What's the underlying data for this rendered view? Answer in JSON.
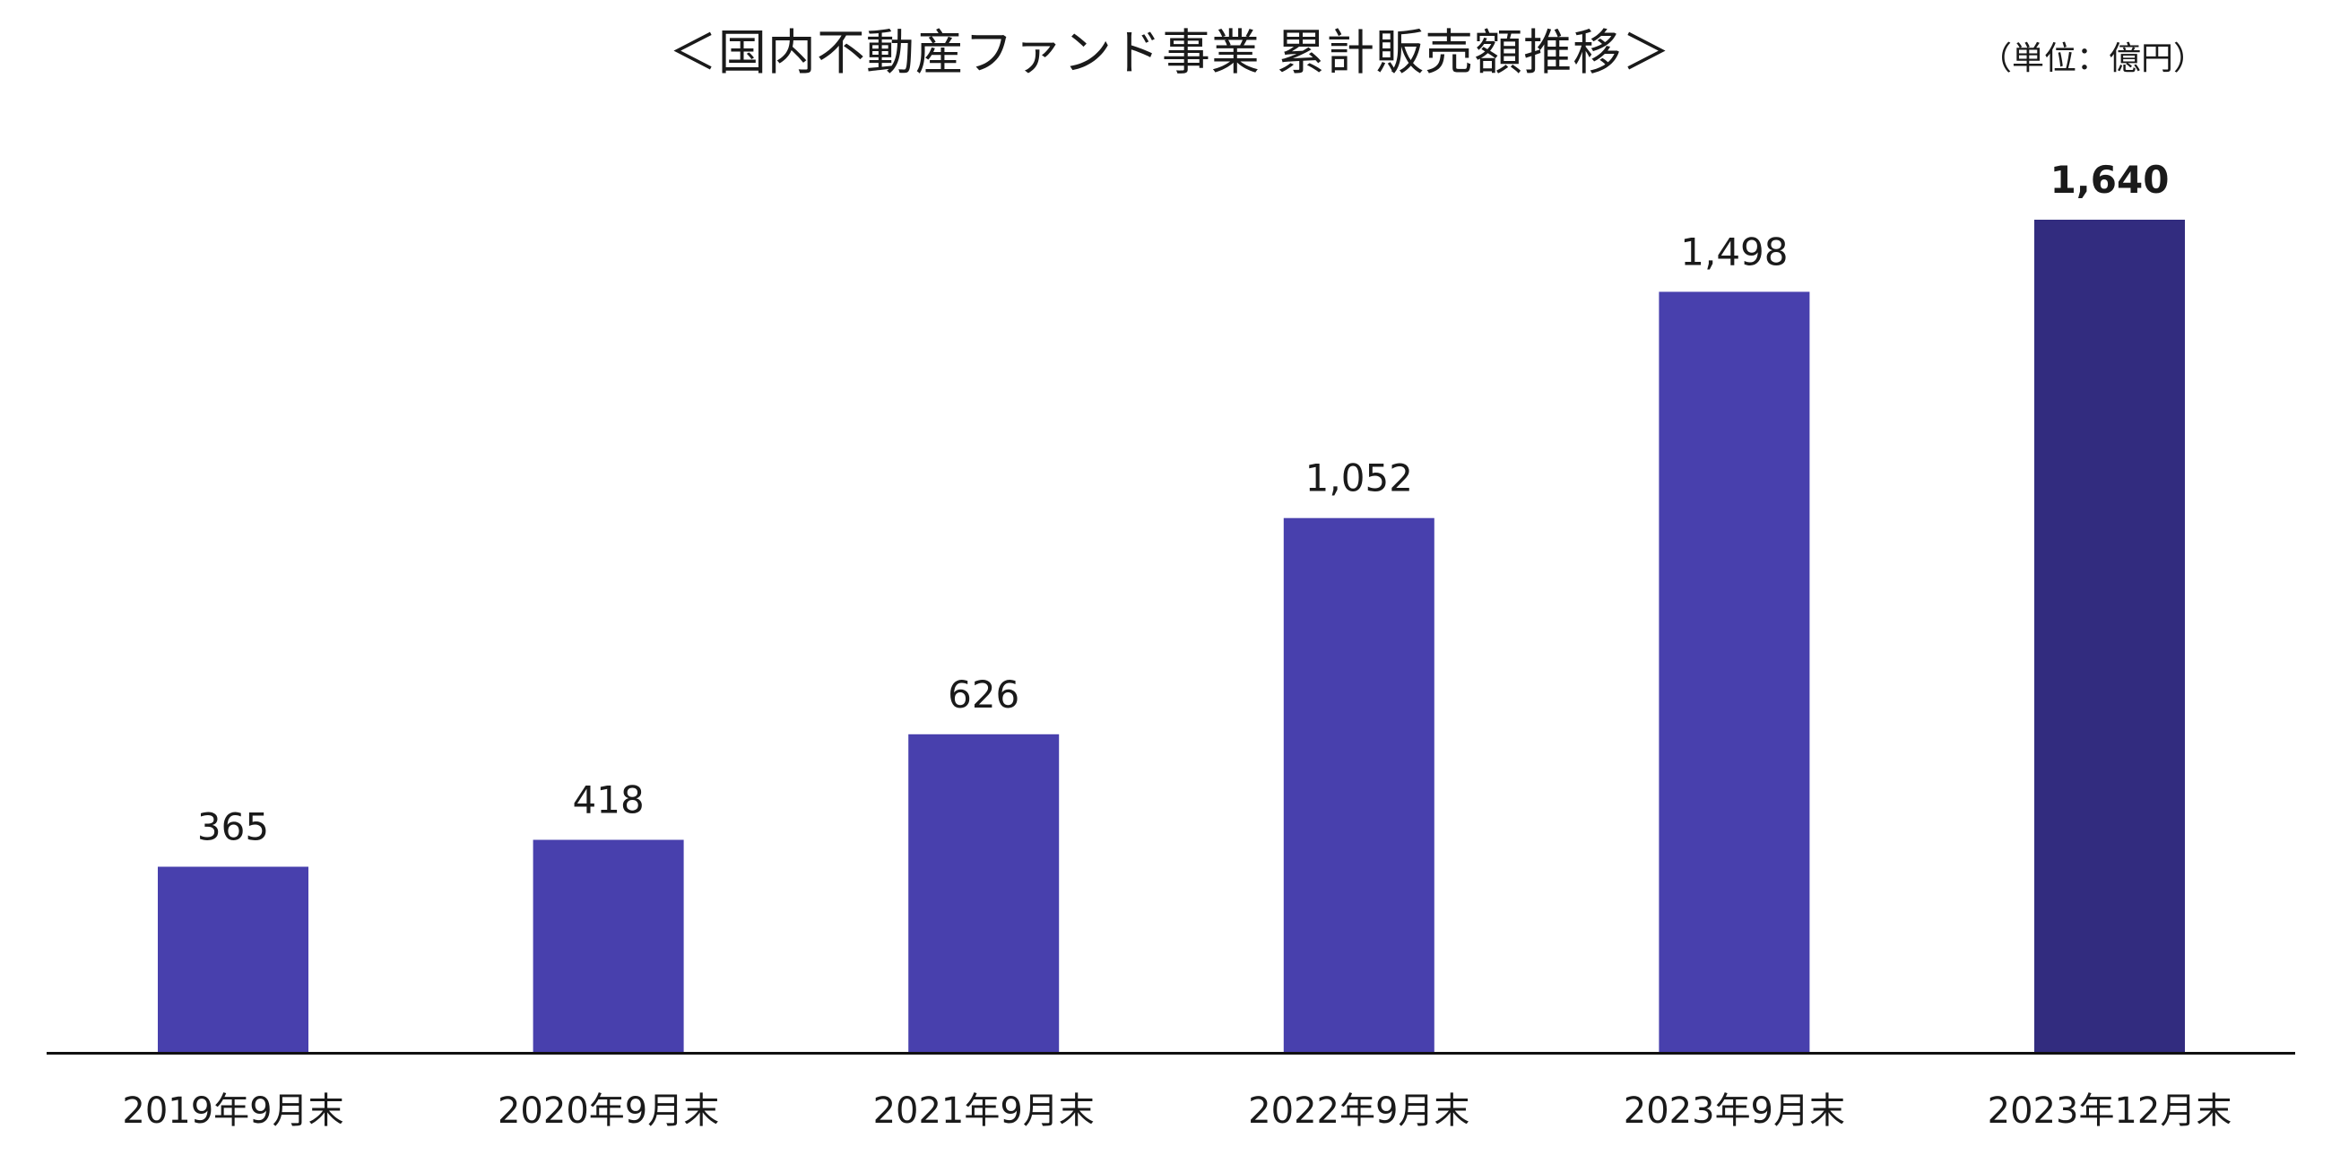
{
  "chart_data": {
    "type": "bar",
    "title": "＜国内不動産ファンド事業 累計販売額推移＞",
    "unit_label": "（単位：億円）",
    "categories": [
      "2019年9月末",
      "2020年9月末",
      "2021年9月末",
      "2022年9月末",
      "2023年9月末",
      "2023年12月末"
    ],
    "values": [
      365,
      418,
      626,
      1052,
      1498,
      1640
    ],
    "data_labels": [
      "365",
      "418",
      "626",
      "1,052",
      "1,498",
      "1,640"
    ],
    "highlight_index": 5,
    "ylim": [
      0,
      1640
    ],
    "grid": false,
    "legend": "none",
    "colors": {
      "bar": "#4840ad",
      "highlight": "#322c7f",
      "axis": "#111111",
      "text": "#1a1a1a"
    }
  }
}
